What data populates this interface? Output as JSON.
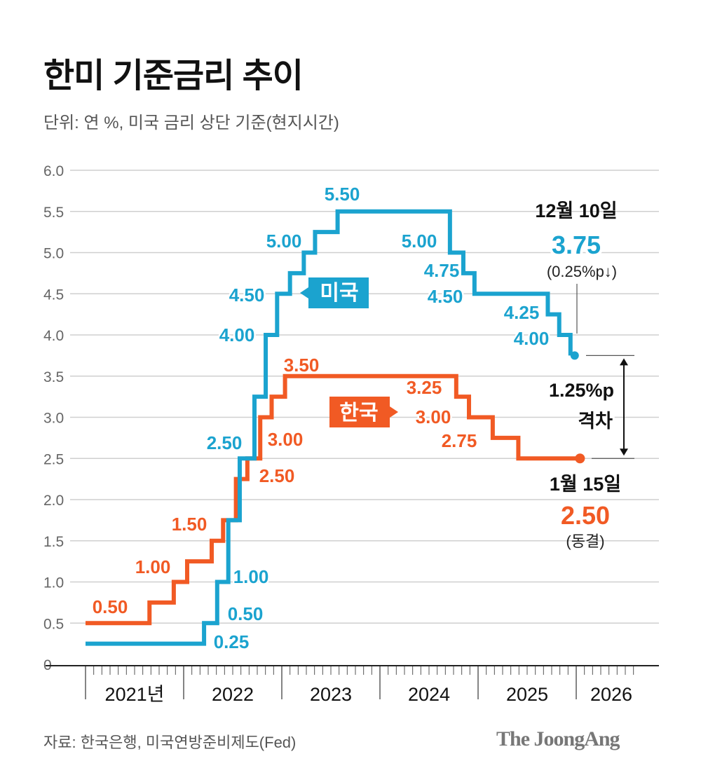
{
  "title": "한미 기준금리 추이",
  "subtitle": "단위: 연 %, 미국 금리 상단 기준(현지시간)",
  "source": "자료: 한국은행, 미국연방준비제도(Fed)",
  "logo": "The JoongAng",
  "chart_data": {
    "type": "line",
    "step": true,
    "ylim": [
      0,
      6.0
    ],
    "yticks": [
      "0",
      "0.5",
      "1.0",
      "1.5",
      "2.0",
      "2.5",
      "3.0",
      "3.5",
      "4.0",
      "4.5",
      "5.0",
      "5.5",
      "6.0"
    ],
    "xlim": [
      "2021-01",
      "2026-12"
    ],
    "xticks": [
      "2021년",
      "2022",
      "2023",
      "2024",
      "2025",
      "2026"
    ],
    "grid": true,
    "series": [
      {
        "name": "미국",
        "color": "#1ba3cf",
        "points": [
          [
            "2021-01-01",
            0.25
          ],
          [
            "2022-03-16",
            0.5
          ],
          [
            "2022-05-04",
            1.0
          ],
          [
            "2022-06-15",
            1.75
          ],
          [
            "2022-07-27",
            2.5
          ],
          [
            "2022-09-21",
            3.25
          ],
          [
            "2022-11-02",
            4.0
          ],
          [
            "2022-12-14",
            4.5
          ],
          [
            "2023-02-01",
            4.75
          ],
          [
            "2023-03-22",
            5.0
          ],
          [
            "2023-05-03",
            5.25
          ],
          [
            "2023-07-26",
            5.5
          ],
          [
            "2024-09-18",
            5.0
          ],
          [
            "2024-11-07",
            4.75
          ],
          [
            "2024-12-18",
            4.5
          ],
          [
            "2025-09-17",
            4.25
          ],
          [
            "2025-10-29",
            4.0
          ],
          [
            "2025-12-10",
            3.75
          ]
        ],
        "labels": [
          "0.25",
          "0.50",
          "1.00",
          "2.50",
          "4.00",
          "4.50",
          "5.00",
          "5.50",
          "5.00",
          "4.75",
          "4.50",
          "4.25",
          "4.00"
        ]
      },
      {
        "name": "한국",
        "color": "#f15a24",
        "points": [
          [
            "2021-01-01",
            0.5
          ],
          [
            "2021-08-26",
            0.75
          ],
          [
            "2021-11-25",
            1.0
          ],
          [
            "2022-01-14",
            1.25
          ],
          [
            "2022-04-14",
            1.5
          ],
          [
            "2022-05-26",
            1.75
          ],
          [
            "2022-07-13",
            2.25
          ],
          [
            "2022-08-25",
            2.5
          ],
          [
            "2022-10-12",
            3.0
          ],
          [
            "2022-11-24",
            3.25
          ],
          [
            "2023-01-13",
            3.5
          ],
          [
            "2024-10-11",
            3.25
          ],
          [
            "2024-11-28",
            3.0
          ],
          [
            "2025-02-25",
            2.75
          ],
          [
            "2025-05-29",
            2.5
          ],
          [
            "2026-01-15",
            2.5
          ]
        ],
        "labels": [
          "0.50",
          "1.00",
          "1.50",
          "2.50",
          "3.00",
          "3.50",
          "3.25",
          "3.00",
          "2.75"
        ]
      }
    ],
    "annotations": {
      "us_date": "12월 10일",
      "us_value": "3.75",
      "us_change": "(0.25%p↓)",
      "gap_value": "1.25%p",
      "gap_label": "격차",
      "kr_date": "1월 15일",
      "kr_value": "2.50",
      "kr_change": "(동결)"
    }
  }
}
